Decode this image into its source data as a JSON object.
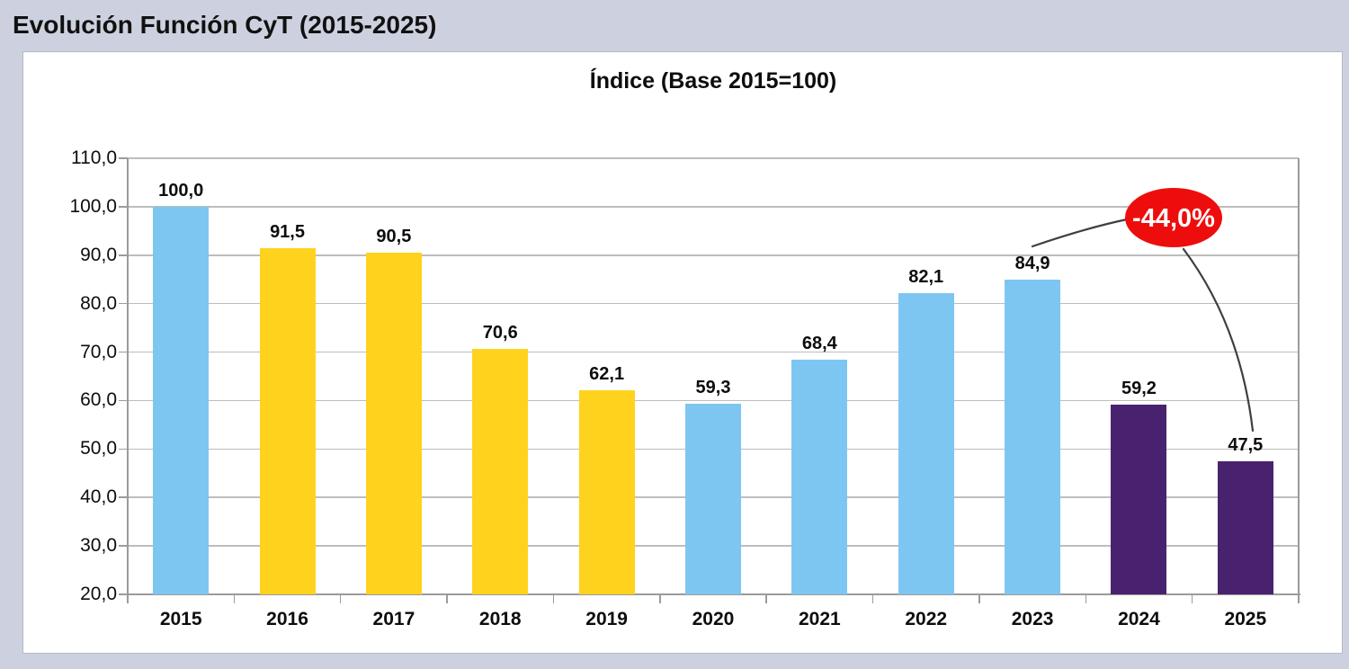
{
  "header": {
    "title": "Evolución Función CyT (2015-2025)"
  },
  "chart_data": {
    "type": "bar",
    "title": "Índice (Base 2015=100)",
    "categories": [
      "2015",
      "2016",
      "2017",
      "2018",
      "2019",
      "2020",
      "2021",
      "2022",
      "2023",
      "2024",
      "2025"
    ],
    "values": [
      100.0,
      91.5,
      90.5,
      70.6,
      62.1,
      59.3,
      68.4,
      82.1,
      84.9,
      59.2,
      47.5
    ],
    "value_labels": [
      "100,0",
      "91,5",
      "90,5",
      "70,6",
      "62,1",
      "59,3",
      "68,4",
      "82,1",
      "84,9",
      "59,2",
      "47,5"
    ],
    "bar_colors": [
      "#7EC6F2",
      "#FFD21E",
      "#FFD21E",
      "#FFD21E",
      "#FFD21E",
      "#7EC6F2",
      "#7EC6F2",
      "#7EC6F2",
      "#7EC6F2",
      "#49226F",
      "#49226F"
    ],
    "palette": {
      "blue": "#7EC6F2",
      "yellow": "#FFD21E",
      "purple": "#49226F"
    },
    "xlabel": "",
    "ylabel": "",
    "ylim": [
      20,
      110
    ],
    "ytick_step": 10,
    "ytick_labels": [
      "20,0",
      "30,0",
      "40,0",
      "50,0",
      "60,0",
      "70,0",
      "80,0",
      "90,0",
      "100,0",
      "110,0"
    ],
    "grid": true,
    "legend": "none",
    "annotation": {
      "label": "-44,0%",
      "fill": "#EE0D0D",
      "text_color": "#FFFFFF",
      "from_category": "2023",
      "to_category": "2025"
    }
  },
  "colors": {
    "background": "#CDD1DF",
    "panel": "#FFFFFF",
    "gridline": "#BDBDBD",
    "axis": "#9B9B9B",
    "text": "#0D0D0D"
  }
}
